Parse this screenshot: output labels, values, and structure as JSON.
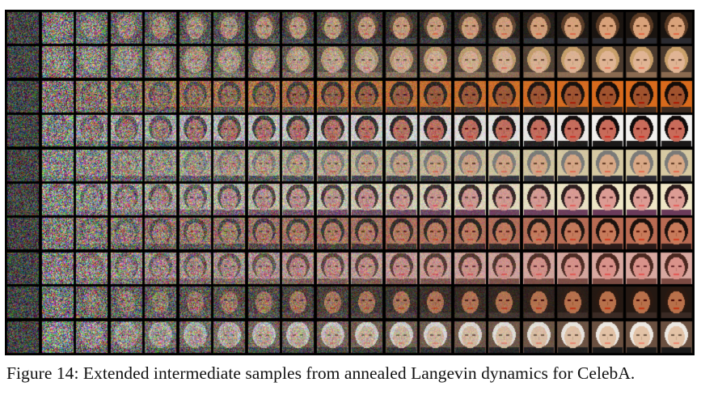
{
  "figure": {
    "caption": "Figure 14: Extended intermediate samples from annealed Langevin dynamics for CelebA.",
    "grid": {
      "rows": 10,
      "columns": 20,
      "content": "face samples progressing from random noise (left) to denoised faces (right)"
    },
    "colors": {
      "background": "#ffffff",
      "grid_border": "#000000",
      "caption_text": "#111111"
    },
    "faces": [
      {
        "skin": "#d9a27a",
        "hair": "#5a3a24",
        "bg": "#1a1410",
        "shirt": "#2a2a30"
      },
      {
        "skin": "#e0b494",
        "hair": "#c9a06a",
        "bg": "#4a3a2e",
        "shirt": "#8a6a50"
      },
      {
        "skin": "#a0522d",
        "hair": "#140c08",
        "bg": "#d86a1c",
        "shirt": "#3a2a20"
      },
      {
        "skin": "#c96b5a",
        "hair": "#0f0a0a",
        "bg": "#f2f0ee",
        "shirt": "#1a1818"
      },
      {
        "skin": "#d8a886",
        "hair": "#7a7a78",
        "bg": "#d6c9a2",
        "shirt": "#2c2c34"
      },
      {
        "skin": "#dc9c94",
        "hair": "#2a1a1a",
        "bg": "#efe6c6",
        "shirt": "#6a3a5a"
      },
      {
        "skin": "#c87a5a",
        "hair": "#1a100c",
        "bg": "#b86a52",
        "shirt": "#2a1a18"
      },
      {
        "skin": "#d9928a",
        "hair": "#4a2820",
        "bg": "#d8a8a0",
        "shirt": "#7a4a42"
      },
      {
        "skin": "#b8704a",
        "hair": "#2a1810",
        "bg": "#241812",
        "shirt": "#3a2a24"
      },
      {
        "skin": "#e2c2a6",
        "hair": "#ece8e2",
        "bg": "#6a5040",
        "shirt": "#1a1a1a"
      }
    ]
  }
}
